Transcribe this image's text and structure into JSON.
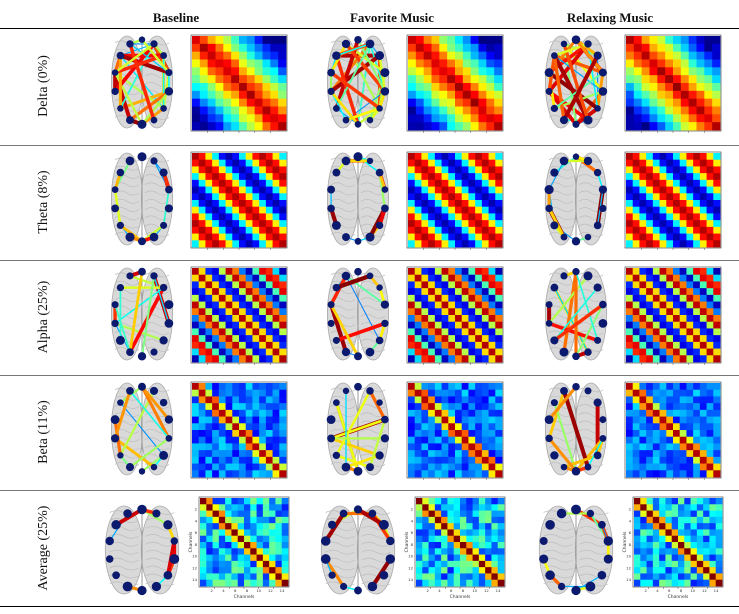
{
  "columns": [
    "Baseline",
    "Favorite Music",
    "Relaxing Music"
  ],
  "rows": [
    {
      "label": "Delta (0%)",
      "pattern": "broad"
    },
    {
      "label": "Theta (8%)",
      "pattern": "bands"
    },
    {
      "label": "Alpha (25%)",
      "pattern": "checker"
    },
    {
      "label": "Beta (11%)",
      "pattern": "diag-blue"
    },
    {
      "label": "Average (25%)",
      "pattern": "avg"
    }
  ],
  "colors": {
    "brain_fill": "#d9d9d9",
    "node": "#0b1a6e",
    "jet_low": "#00008f",
    "jet_high": "#800000"
  },
  "average_axes": {
    "ylabel": "Channels",
    "xlabel": "Channels",
    "ticks": [
      "2",
      "4",
      "6",
      "8",
      "10",
      "12",
      "14"
    ]
  }
}
